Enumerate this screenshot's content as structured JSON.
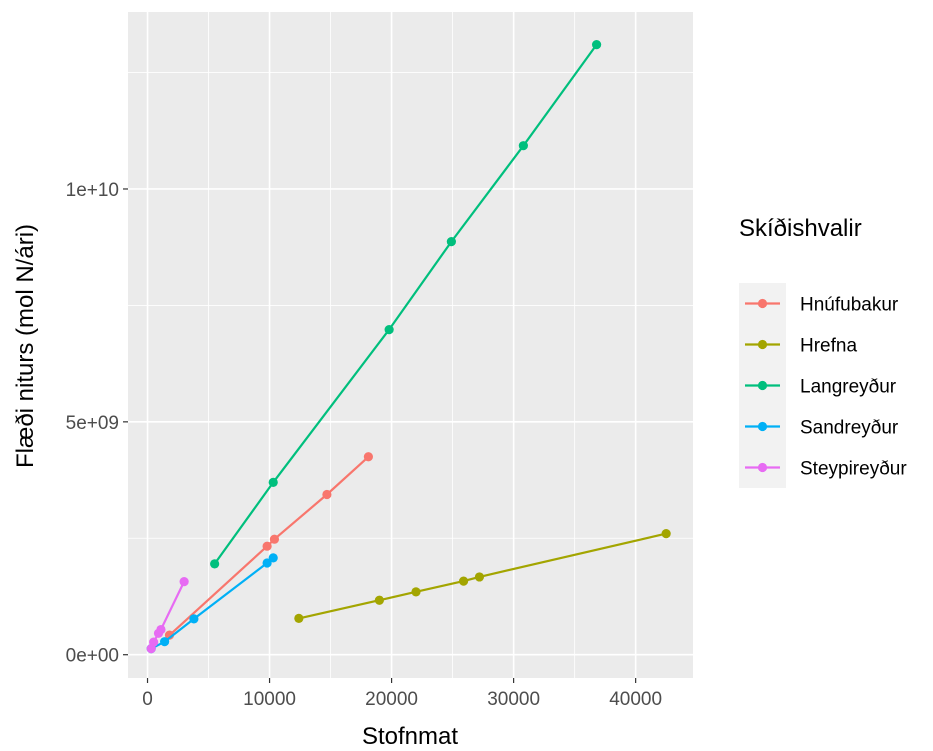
{
  "chart_data": {
    "type": "line",
    "xlabel": "Stofnmat",
    "ylabel": "Flæði niturs (mol N/ári)",
    "xlim": [
      -1600,
      44700
    ],
    "ylim": [
      -500000000,
      13800000000
    ],
    "x_ticks": [
      0,
      10000,
      20000,
      30000,
      40000
    ],
    "x_tick_labels": [
      "0",
      "10000",
      "20000",
      "30000",
      "40000"
    ],
    "y_ticks": [
      0,
      5000000000,
      10000000000
    ],
    "y_tick_labels": [
      "0e+00",
      "5e+09",
      "1e+10"
    ],
    "grid": true,
    "legend": {
      "title": "Skíðishvalir",
      "position": "right"
    },
    "series": [
      {
        "name": "Hnúfubakur",
        "color": "#F8766D",
        "x": [
          1800,
          9800,
          10400,
          14700,
          18100
        ],
        "y": [
          420000000,
          2330000000,
          2480000000,
          3440000000,
          4250000000
        ]
      },
      {
        "name": "Hrefna",
        "color": "#A3A500",
        "x": [
          12400,
          19000,
          22000,
          25900,
          27200,
          42500
        ],
        "y": [
          780000000,
          1170000000,
          1350000000,
          1580000000,
          1670000000,
          2600000000
        ]
      },
      {
        "name": "Langreyður",
        "color": "#00BF7D",
        "x": [
          5500,
          10300,
          19800,
          24900,
          30800,
          36800
        ],
        "y": [
          1950000000,
          3700000000,
          6980000000,
          8870000000,
          10930000000,
          13100000000
        ]
      },
      {
        "name": "Sandreyður",
        "color": "#00B0F6",
        "x": [
          300,
          1400,
          3800,
          9800,
          10300
        ],
        "y": [
          130000000,
          280000000,
          770000000,
          1970000000,
          2080000000
        ]
      },
      {
        "name": "Steypireyður",
        "color": "#E76BF3",
        "x": [
          300,
          500,
          900,
          1100,
          3000
        ],
        "y": [
          130000000,
          270000000,
          460000000,
          540000000,
          1570000000
        ]
      }
    ]
  }
}
